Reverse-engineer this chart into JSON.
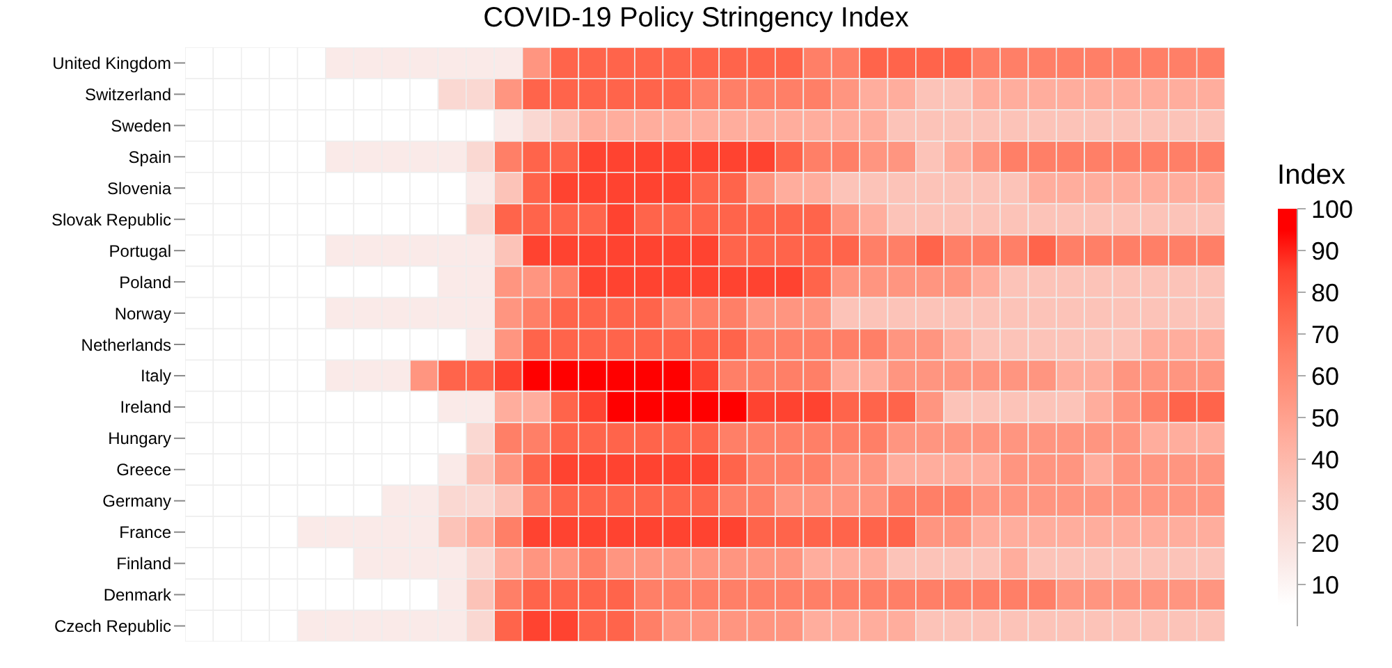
{
  "chart_data": {
    "type": "heatmap",
    "title": "COVID-19 Policy Stringency Index",
    "legend_title": "Index",
    "categories": [
      null,
      null,
      null,
      null,
      null,
      null,
      null,
      null,
      null,
      null,
      null,
      null,
      null,
      null,
      null,
      null,
      null,
      null,
      null,
      null,
      null,
      null,
      null,
      null,
      null,
      null,
      null,
      null,
      null,
      null,
      null,
      null,
      null,
      null,
      null,
      null,
      null
    ],
    "y_categories": [
      "United Kingdom",
      "Switzerland",
      "Sweden",
      "Spain",
      "Slovenia",
      "Slovak Republic",
      "Portugal",
      "Poland",
      "Norway",
      "Netherlands",
      "Italy",
      "Ireland",
      "Hungary",
      "Greece",
      "Germany",
      "France",
      "Finland",
      "Denmark",
      "Czech Republic"
    ],
    "cells": [
      [
        5,
        5,
        5,
        5,
        5,
        15,
        15,
        15,
        15,
        15,
        15,
        15,
        55,
        75,
        75,
        75,
        75,
        75,
        75,
        75,
        75,
        75,
        65,
        65,
        75,
        75,
        75,
        75,
        65,
        65,
        65,
        65,
        65,
        65,
        65,
        65,
        65
      ],
      [
        5,
        5,
        5,
        5,
        5,
        5,
        5,
        5,
        5,
        25,
        25,
        55,
        75,
        75,
        75,
        75,
        75,
        75,
        65,
        65,
        65,
        65,
        65,
        55,
        45,
        45,
        35,
        35,
        45,
        45,
        45,
        45,
        45,
        45,
        45,
        45,
        45
      ],
      [
        5,
        5,
        5,
        5,
        5,
        5,
        5,
        5,
        5,
        5,
        5,
        15,
        25,
        35,
        45,
        45,
        45,
        45,
        45,
        45,
        45,
        45,
        45,
        45,
        45,
        35,
        35,
        35,
        35,
        35,
        35,
        35,
        35,
        35,
        35,
        35,
        35
      ],
      [
        5,
        5,
        5,
        5,
        5,
        15,
        15,
        15,
        15,
        15,
        25,
        65,
        75,
        75,
        85,
        85,
        85,
        85,
        85,
        85,
        85,
        75,
        65,
        65,
        55,
        55,
        35,
        45,
        55,
        65,
        65,
        65,
        65,
        65,
        65,
        65,
        65
      ],
      [
        5,
        5,
        5,
        5,
        5,
        5,
        5,
        5,
        5,
        5,
        15,
        35,
        75,
        85,
        85,
        85,
        85,
        85,
        75,
        75,
        55,
        45,
        45,
        35,
        35,
        35,
        35,
        35,
        35,
        35,
        45,
        45,
        45,
        45,
        45,
        45,
        45
      ],
      [
        5,
        5,
        5,
        5,
        5,
        5,
        5,
        5,
        5,
        5,
        25,
        75,
        75,
        75,
        75,
        85,
        75,
        75,
        75,
        75,
        75,
        75,
        75,
        55,
        45,
        35,
        35,
        35,
        35,
        35,
        35,
        35,
        35,
        35,
        35,
        35,
        35
      ],
      [
        5,
        5,
        5,
        5,
        5,
        15,
        15,
        15,
        15,
        15,
        15,
        35,
        85,
        85,
        85,
        85,
        85,
        85,
        85,
        75,
        75,
        75,
        75,
        75,
        65,
        65,
        75,
        65,
        65,
        65,
        75,
        65,
        65,
        65,
        65,
        65,
        65
      ],
      [
        5,
        5,
        5,
        5,
        5,
        5,
        5,
        5,
        5,
        15,
        15,
        55,
        55,
        65,
        85,
        85,
        85,
        85,
        85,
        85,
        85,
        85,
        75,
        55,
        55,
        55,
        55,
        55,
        45,
        35,
        35,
        35,
        35,
        35,
        35,
        35,
        35
      ],
      [
        5,
        5,
        5,
        5,
        5,
        15,
        15,
        15,
        15,
        15,
        15,
        55,
        65,
        75,
        75,
        75,
        75,
        65,
        65,
        65,
        55,
        55,
        55,
        35,
        35,
        35,
        35,
        35,
        35,
        35,
        35,
        35,
        35,
        35,
        35,
        35,
        35
      ],
      [
        5,
        5,
        5,
        5,
        5,
        5,
        5,
        5,
        5,
        5,
        15,
        55,
        75,
        75,
        75,
        75,
        75,
        75,
        75,
        75,
        65,
        65,
        65,
        65,
        65,
        55,
        55,
        45,
        35,
        35,
        35,
        35,
        35,
        35,
        45,
        45,
        45
      ],
      [
        5,
        5,
        5,
        5,
        5,
        15,
        15,
        15,
        55,
        75,
        75,
        85,
        95,
        95,
        95,
        95,
        95,
        95,
        85,
        65,
        65,
        65,
        65,
        45,
        45,
        55,
        55,
        55,
        55,
        55,
        55,
        45,
        45,
        55,
        55,
        55,
        55
      ],
      [
        5,
        5,
        5,
        5,
        5,
        5,
        5,
        5,
        5,
        15,
        15,
        45,
        45,
        75,
        85,
        95,
        95,
        95,
        95,
        95,
        85,
        85,
        85,
        75,
        75,
        75,
        55,
        35,
        35,
        35,
        35,
        35,
        45,
        55,
        65,
        75,
        75
      ],
      [
        5,
        5,
        5,
        5,
        5,
        5,
        5,
        5,
        5,
        5,
        25,
        65,
        65,
        75,
        75,
        75,
        75,
        75,
        75,
        65,
        65,
        65,
        65,
        65,
        65,
        55,
        55,
        55,
        55,
        55,
        55,
        55,
        55,
        55,
        45,
        45,
        45
      ],
      [
        5,
        5,
        5,
        5,
        5,
        5,
        5,
        5,
        5,
        15,
        35,
        55,
        75,
        85,
        85,
        85,
        85,
        85,
        85,
        75,
        65,
        65,
        65,
        55,
        55,
        45,
        45,
        45,
        45,
        55,
        55,
        55,
        45,
        55,
        55,
        55,
        55
      ],
      [
        5,
        5,
        5,
        5,
        5,
        5,
        5,
        15,
        15,
        25,
        25,
        35,
        65,
        75,
        75,
        75,
        75,
        75,
        75,
        65,
        65,
        55,
        55,
        55,
        55,
        65,
        65,
        65,
        55,
        55,
        55,
        55,
        55,
        55,
        55,
        55,
        55
      ],
      [
        5,
        5,
        5,
        5,
        15,
        15,
        15,
        15,
        15,
        35,
        45,
        65,
        85,
        85,
        85,
        85,
        85,
        85,
        85,
        85,
        75,
        75,
        75,
        75,
        75,
        75,
        55,
        55,
        45,
        45,
        45,
        45,
        45,
        45,
        45,
        45,
        45
      ],
      [
        5,
        5,
        5,
        5,
        5,
        5,
        15,
        15,
        15,
        15,
        25,
        45,
        55,
        55,
        65,
        55,
        55,
        55,
        55,
        55,
        55,
        55,
        45,
        45,
        45,
        35,
        35,
        35,
        35,
        45,
        35,
        35,
        35,
        35,
        35,
        35,
        35
      ],
      [
        5,
        5,
        5,
        5,
        5,
        5,
        5,
        5,
        5,
        15,
        35,
        65,
        75,
        75,
        75,
        75,
        65,
        65,
        65,
        65,
        65,
        65,
        65,
        65,
        65,
        65,
        65,
        65,
        65,
        65,
        65,
        55,
        55,
        55,
        55,
        55,
        55
      ],
      [
        5,
        5,
        5,
        5,
        15,
        15,
        15,
        15,
        15,
        15,
        25,
        75,
        85,
        85,
        75,
        75,
        65,
        55,
        55,
        55,
        55,
        55,
        45,
        45,
        45,
        45,
        35,
        35,
        35,
        35,
        35,
        35,
        35,
        35,
        35,
        35,
        35
      ]
    ],
    "clim": [
      0,
      100
    ],
    "cticks": [
      10,
      20,
      30,
      40,
      50,
      60,
      70,
      80,
      90,
      100
    ]
  }
}
